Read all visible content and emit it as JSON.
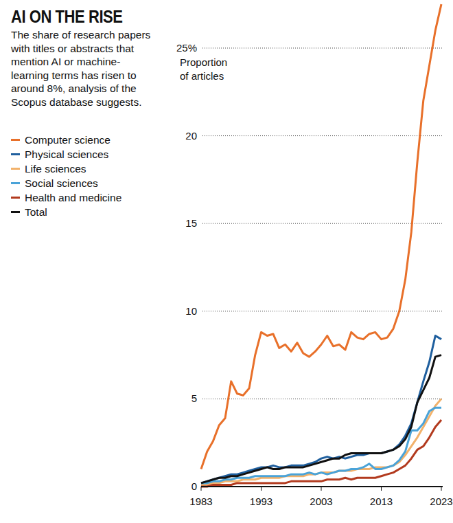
{
  "chart_data": {
    "type": "line",
    "title": "AI ON THE RISE",
    "subtitle": "The share of research papers with titles or abstracts that mention AI or machine-learning terms has risen to around 8%, analysis of the Scopus database suggests.",
    "y_label": "Proportion of articles",
    "x": [
      1983,
      1984,
      1985,
      1986,
      1987,
      1988,
      1989,
      1990,
      1991,
      1992,
      1993,
      1994,
      1995,
      1996,
      1997,
      1998,
      1999,
      2000,
      2001,
      2002,
      2003,
      2004,
      2005,
      2006,
      2007,
      2008,
      2009,
      2010,
      2011,
      2012,
      2013,
      2014,
      2015,
      2016,
      2017,
      2018,
      2019,
      2020,
      2021,
      2022,
      2023
    ],
    "xlim": [
      1983,
      2023
    ],
    "xticks": [
      1983,
      1993,
      2003,
      2013,
      2023
    ],
    "ylim": [
      0,
      27.6
    ],
    "yticks": [
      0,
      5,
      10,
      15,
      20,
      {
        "value": 25,
        "label": "25%"
      }
    ],
    "grid": true,
    "legend": "left",
    "series": [
      {
        "name": "Computer science",
        "color": "#e8702a",
        "values": [
          1.0,
          2.0,
          2.6,
          3.5,
          3.9,
          6.0,
          5.3,
          5.2,
          5.6,
          7.5,
          8.8,
          8.6,
          8.7,
          7.9,
          8.1,
          7.7,
          8.2,
          7.6,
          7.4,
          7.7,
          8.1,
          8.6,
          8.0,
          8.1,
          7.8,
          8.8,
          8.5,
          8.4,
          8.7,
          8.8,
          8.4,
          8.5,
          9.0,
          10.0,
          11.8,
          14.5,
          18.5,
          22.0,
          24.0,
          26.0,
          27.5
        ]
      },
      {
        "name": "Physical sciences",
        "color": "#1f5f9e",
        "values": [
          0.2,
          0.3,
          0.4,
          0.5,
          0.6,
          0.7,
          0.7,
          0.8,
          0.9,
          1.0,
          1.1,
          1.1,
          1.2,
          1.1,
          1.1,
          1.2,
          1.2,
          1.2,
          1.3,
          1.4,
          1.6,
          1.7,
          1.6,
          1.7,
          1.6,
          1.7,
          1.8,
          1.8,
          1.9,
          1.9,
          1.9,
          2.0,
          2.1,
          2.4,
          2.9,
          3.6,
          4.8,
          6.0,
          7.1,
          8.6,
          8.4
        ]
      },
      {
        "name": "Life sciences",
        "color": "#f2b26b",
        "values": [
          0.1,
          0.1,
          0.2,
          0.2,
          0.3,
          0.3,
          0.3,
          0.4,
          0.4,
          0.4,
          0.5,
          0.5,
          0.5,
          0.5,
          0.6,
          0.6,
          0.6,
          0.6,
          0.7,
          0.7,
          0.8,
          0.8,
          0.8,
          0.9,
          0.9,
          0.9,
          1.0,
          1.0,
          1.0,
          1.1,
          1.1,
          1.1,
          1.2,
          1.4,
          1.8,
          2.3,
          2.8,
          3.4,
          4.0,
          4.6,
          5.0
        ]
      },
      {
        "name": "Social sciences",
        "color": "#4aa3d8",
        "values": [
          0.2,
          0.2,
          0.3,
          0.3,
          0.4,
          0.4,
          0.5,
          0.5,
          0.5,
          0.6,
          0.6,
          0.6,
          0.6,
          0.6,
          0.6,
          0.7,
          0.7,
          0.7,
          0.8,
          0.7,
          0.8,
          0.7,
          0.8,
          0.9,
          0.9,
          1.0,
          1.0,
          1.1,
          1.3,
          1.0,
          1.0,
          1.1,
          1.2,
          1.5,
          2.0,
          3.2,
          3.2,
          3.6,
          4.3,
          4.5,
          4.5
        ]
      },
      {
        "name": "Health and medicine",
        "color": "#b23a1e",
        "values": [
          0.0,
          0.0,
          0.1,
          0.1,
          0.1,
          0.1,
          0.2,
          0.2,
          0.2,
          0.2,
          0.2,
          0.2,
          0.2,
          0.2,
          0.2,
          0.3,
          0.3,
          0.3,
          0.3,
          0.3,
          0.3,
          0.4,
          0.4,
          0.4,
          0.5,
          0.4,
          0.5,
          0.5,
          0.5,
          0.5,
          0.6,
          0.7,
          0.8,
          1.0,
          1.2,
          1.6,
          2.1,
          2.3,
          2.8,
          3.4,
          3.8
        ]
      },
      {
        "name": "Total",
        "color": "#111111",
        "values": [
          0.2,
          0.3,
          0.4,
          0.5,
          0.5,
          0.6,
          0.6,
          0.7,
          0.8,
          0.9,
          1.0,
          1.1,
          1.0,
          1.0,
          1.1,
          1.1,
          1.1,
          1.1,
          1.2,
          1.3,
          1.4,
          1.5,
          1.6,
          1.6,
          1.8,
          1.9,
          1.9,
          1.9,
          1.9,
          1.9,
          1.9,
          2.0,
          2.1,
          2.3,
          2.7,
          3.4,
          4.8,
          5.5,
          6.2,
          7.4,
          7.5
        ]
      }
    ]
  }
}
